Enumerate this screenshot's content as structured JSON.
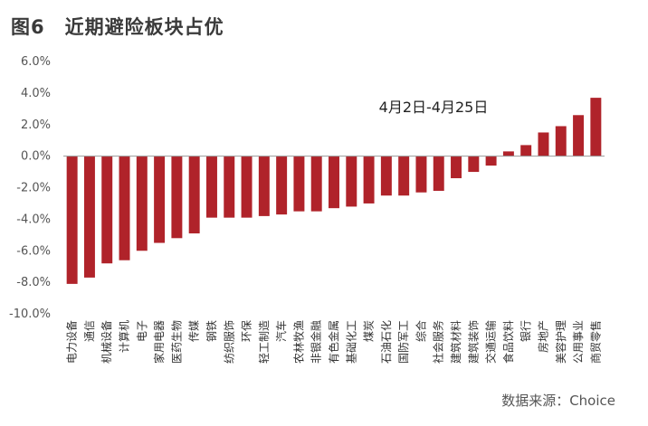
{
  "figure": {
    "title": "图6　近期避险板块占优",
    "source": "数据来源：Choice"
  },
  "chart_data": {
    "type": "bar",
    "title": "",
    "xlabel": "",
    "ylabel": "",
    "ylim": [
      -10,
      6
    ],
    "ytick_labels": [
      "6.0%",
      "4.0%",
      "2.0%",
      "0.0%",
      "-2.0%",
      "-4.0%",
      "-6.0%",
      "-8.0%",
      "-10.0%"
    ],
    "ytick_values": [
      6,
      4,
      2,
      0,
      -2,
      -4,
      -6,
      -8,
      -10
    ],
    "grid": false,
    "color": "#b0232a",
    "annotation": "4月2日-4月25日",
    "categories": [
      "电力设备",
      "通信",
      "机械设备",
      "计算机",
      "电子",
      "家用电器",
      "医药生物",
      "传媒",
      "钢铁",
      "纺织服饰",
      "环保",
      "轻工制造",
      "汽车",
      "农林牧渔",
      "非银金融",
      "有色金属",
      "基础化工",
      "煤炭",
      "石油石化",
      "国防军工",
      "综合",
      "社会服务",
      "建筑材料",
      "建筑装饰",
      "交通运输",
      "食品饮料",
      "银行",
      "房地产",
      "美容护理",
      "公用事业",
      "商贸零售"
    ],
    "values": [
      -8.1,
      -7.7,
      -6.8,
      -6.6,
      -6.0,
      -5.5,
      -5.2,
      -4.9,
      -3.9,
      -3.9,
      -3.9,
      -3.8,
      -3.7,
      -3.5,
      -3.5,
      -3.3,
      -3.2,
      -3.0,
      -2.5,
      -2.5,
      -2.3,
      -2.2,
      -1.4,
      -1.0,
      -0.6,
      0.3,
      0.7,
      1.5,
      1.9,
      2.6,
      3.7
    ]
  }
}
